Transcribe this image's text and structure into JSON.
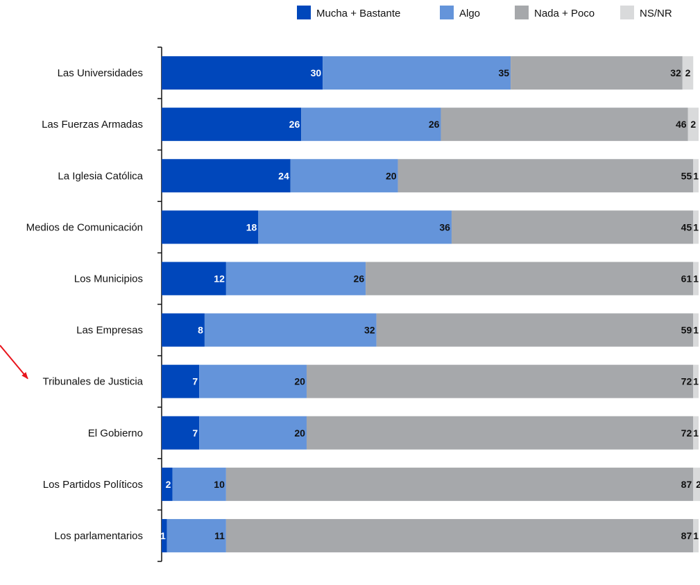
{
  "chart_data": {
    "type": "bar",
    "orientation": "horizontal",
    "stacked": true,
    "title": "",
    "xlabel": "",
    "ylabel": "",
    "xlim": [
      0,
      100
    ],
    "legend_position": "top-right",
    "grid": false,
    "categories": [
      "Las Universidades",
      "Las Fuerzas Armadas",
      "La Iglesia Católica",
      "Medios de Comunicación",
      "Los Municipios",
      "Las Empresas",
      "Tribunales de Justicia",
      "El Gobierno",
      "Los Partidos Políticos",
      "Los parlamentarios"
    ],
    "series": [
      {
        "name": "Mucha + Bastante",
        "color": "#0047bb",
        "label_color": "#ffffff",
        "values": [
          30,
          26,
          24,
          18,
          12,
          8,
          7,
          7,
          2,
          1
        ]
      },
      {
        "name": "Algo",
        "color": "#6494da",
        "label_color": "#111111",
        "values": [
          35,
          26,
          20,
          36,
          26,
          32,
          20,
          20,
          10,
          11
        ]
      },
      {
        "name": "Nada + Poco",
        "color": "#a6a8ab",
        "label_color": "#111111",
        "values": [
          32,
          46,
          55,
          45,
          61,
          59,
          72,
          72,
          87,
          87
        ]
      },
      {
        "name": "NS/NR",
        "color": "#d9dadb",
        "label_color": "#111111",
        "values": [
          2,
          2,
          1,
          1,
          1,
          1,
          1,
          1,
          2,
          1
        ]
      }
    ],
    "annotations": [
      {
        "type": "arrow",
        "color": "#e8141c",
        "target_category": "Tribunales de Justicia"
      }
    ]
  }
}
